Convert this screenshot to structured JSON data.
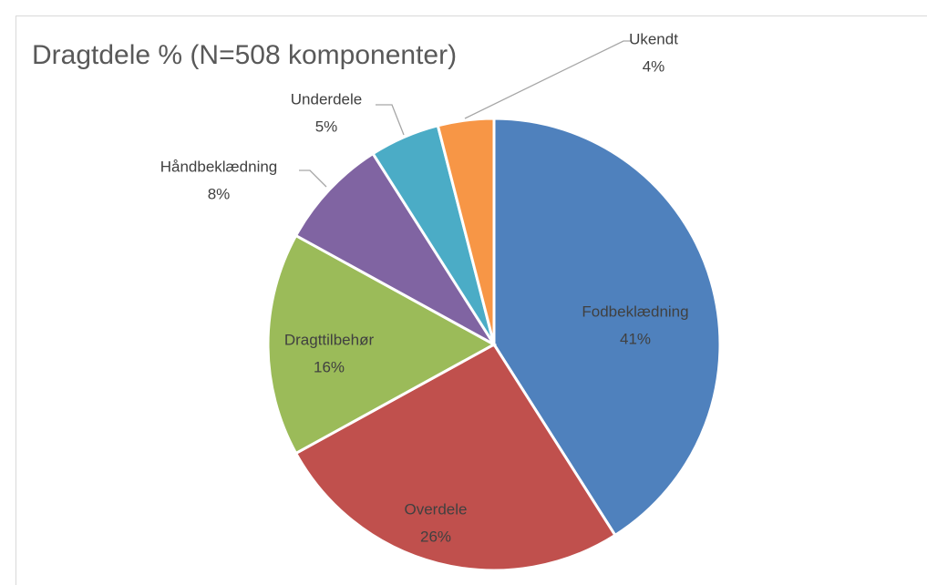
{
  "chart_data": {
    "type": "pie",
    "title": "Dragtdele % (N=508 komponenter)",
    "categories": [
      "Fodbeklædning",
      "Overdele",
      "Dragttilbehør",
      "Håndbeklædning",
      "Underdele",
      "Ukendt"
    ],
    "values": [
      41,
      26,
      16,
      8,
      5,
      4
    ],
    "value_labels": [
      "41%",
      "26%",
      "16%",
      "8%",
      "5%",
      "4%"
    ],
    "colors": [
      "#4f81bd",
      "#c0504d",
      "#9bbb59",
      "#8064a2",
      "#4bacc6",
      "#f79646"
    ]
  }
}
